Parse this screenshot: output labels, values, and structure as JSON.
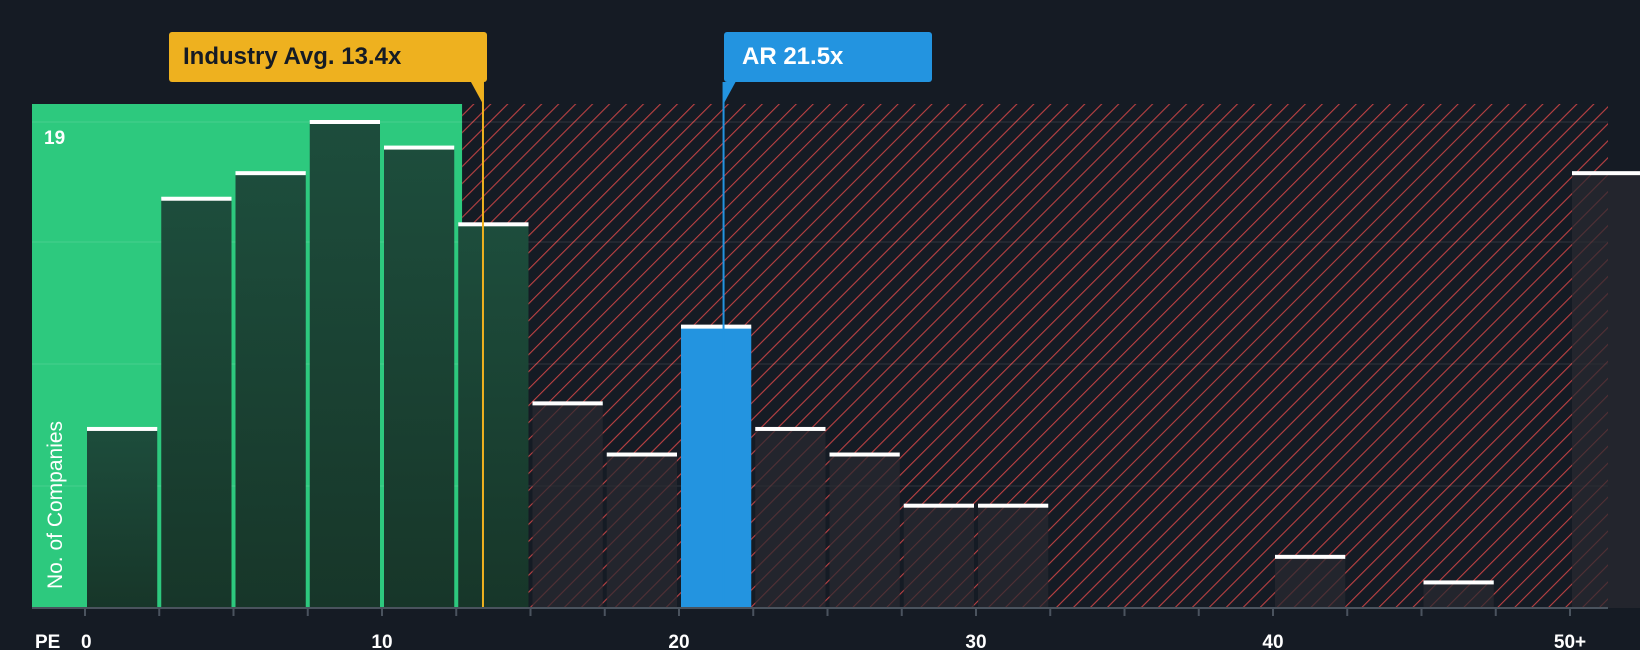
{
  "chart_data": {
    "type": "bar",
    "x_axis_label": "PE",
    "y_axis_label": "No. of Companies",
    "y_tick_label": "19",
    "x_ticks": [
      {
        "value": 0,
        "label": "0"
      },
      {
        "value": 10,
        "label": "10"
      },
      {
        "value": 20,
        "label": "20"
      },
      {
        "value": 30,
        "label": "30"
      },
      {
        "value": 40,
        "label": "40"
      },
      {
        "value": 50,
        "label": "50+"
      }
    ],
    "bins": [
      {
        "start": 0.0,
        "end": 2.5,
        "count": 7
      },
      {
        "start": 2.5,
        "end": 5.0,
        "count": 16
      },
      {
        "start": 5.0,
        "end": 7.5,
        "count": 17
      },
      {
        "start": 7.5,
        "end": 10.0,
        "count": 19
      },
      {
        "start": 10.0,
        "end": 12.5,
        "count": 18
      },
      {
        "start": 12.5,
        "end": 15.0,
        "count": 15
      },
      {
        "start": 15.0,
        "end": 17.5,
        "count": 8
      },
      {
        "start": 17.5,
        "end": 20.0,
        "count": 6
      },
      {
        "start": 20.0,
        "end": 22.5,
        "count": 11,
        "highlight": true
      },
      {
        "start": 22.5,
        "end": 25.0,
        "count": 7
      },
      {
        "start": 25.0,
        "end": 27.5,
        "count": 6
      },
      {
        "start": 27.5,
        "end": 30.0,
        "count": 4
      },
      {
        "start": 30.0,
        "end": 32.5,
        "count": 4
      },
      {
        "start": 32.5,
        "end": 35.0,
        "count": 0
      },
      {
        "start": 35.0,
        "end": 37.5,
        "count": 0
      },
      {
        "start": 37.5,
        "end": 40.0,
        "count": 0
      },
      {
        "start": 40.0,
        "end": 42.5,
        "count": 2
      },
      {
        "start": 42.5,
        "end": 45.0,
        "count": 0
      },
      {
        "start": 45.0,
        "end": 47.5,
        "count": 1
      },
      {
        "start": 47.5,
        "end": 50.0,
        "count": 0
      },
      {
        "start": 50.0,
        "end": 52.5,
        "count": 17
      }
    ],
    "y_max": 19,
    "x_range": [
      0,
      52.5
    ],
    "fair_zone_end": 12.7,
    "industry_avg": {
      "value": 13.4,
      "label": "Industry Avg. 13.4x"
    },
    "company": {
      "value": 21.5,
      "label": "AR 21.5x"
    },
    "colors": {
      "background": "#151b24",
      "fair_zone": "#2dc97e",
      "bar_dark": "#1c4a3a",
      "bar_hatched": "#2a2930",
      "hatch_red": "#d94848",
      "highlight_bar": "#2394e0",
      "industry": "#eeb11f",
      "bar_cap": "#ffffff"
    }
  }
}
